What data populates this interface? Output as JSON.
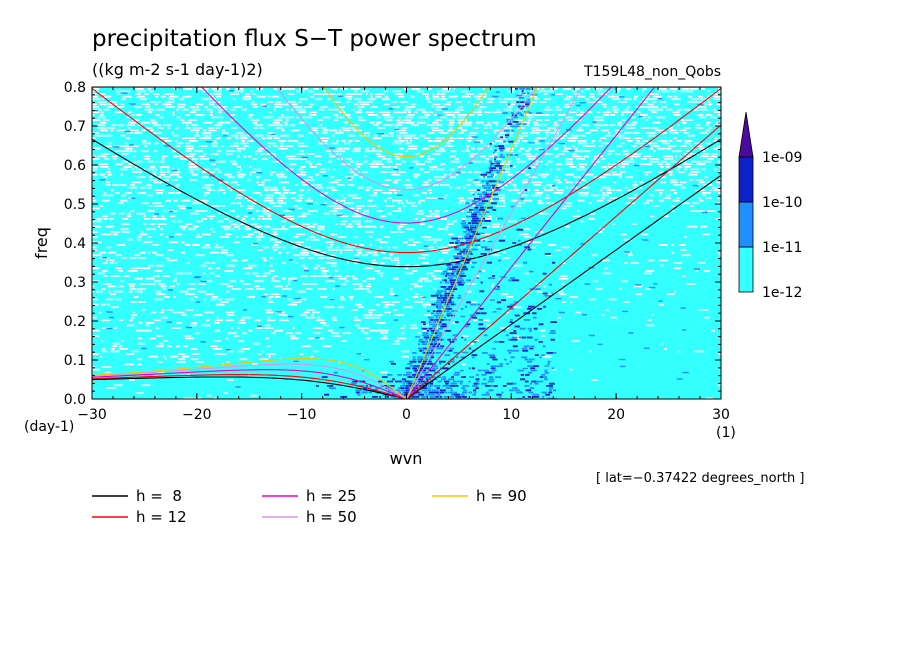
{
  "chart_data": {
    "type": "heatmap",
    "title": "precipitation flux S−T power spectrum",
    "subtitle": "((kg m-2 s-1 day-1)2)",
    "experiment_label": "T159L48_non_Qobs",
    "xlabel": "wvn",
    "ylabel": "freq",
    "x_unit": "(1)",
    "y_unit": "(day-1)",
    "xlim": [
      -30,
      30
    ],
    "ylim": [
      0,
      0.8
    ],
    "x_ticks": [
      -30,
      -20,
      -10,
      0,
      10,
      20,
      30
    ],
    "x_tick_labels": [
      "−30",
      "−20",
      "−10",
      "0",
      "10",
      "20",
      "30"
    ],
    "y_ticks": [
      0,
      0.1,
      0.2,
      0.3,
      0.4,
      0.5,
      0.6,
      0.7,
      0.8
    ],
    "y_tick_labels": [
      "0.0",
      "0.1",
      "0.2",
      "0.3",
      "0.4",
      "0.5",
      "0.6",
      "0.7",
      "0.8"
    ],
    "grid": false,
    "annotation": "[ lat=−0.37422 degrees_north ]",
    "colorbar": {
      "placement": "right",
      "levels": [
        "1e-12",
        "1e-11",
        "1e-10",
        "1e-09"
      ],
      "colors": [
        "#33ffff",
        "#1e90ff",
        "#0a22c8",
        "#4b0aa0"
      ]
    },
    "dispersion_curves": [
      {
        "label": "h =  8",
        "h": 8,
        "color": "#000000"
      },
      {
        "label": "h = 12",
        "h": 12,
        "color": "#ff0000"
      },
      {
        "label": "h = 25",
        "h": 25,
        "color": "#e600c8"
      },
      {
        "label": "h = 50",
        "h": 50,
        "color": "#dc96e6"
      },
      {
        "label": "h = 90",
        "h": 90,
        "color": "#f0c800"
      }
    ]
  }
}
